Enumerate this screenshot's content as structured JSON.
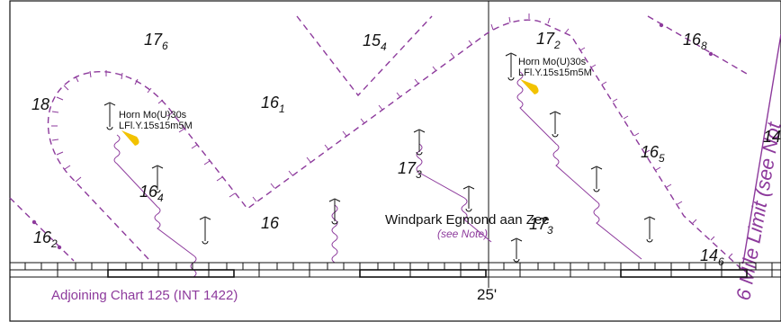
{
  "soundings": [
    {
      "main": "17",
      "sub": "6"
    },
    {
      "main": "15",
      "sub": "4"
    },
    {
      "main": "17",
      "sub": "2"
    },
    {
      "main": "16",
      "sub": "8"
    },
    {
      "main": "18",
      "sub": ""
    },
    {
      "main": "16",
      "sub": "1"
    },
    {
      "main": "17",
      "sub": "3"
    },
    {
      "main": "16",
      "sub": "5"
    },
    {
      "main": "14",
      "sub": ""
    },
    {
      "main": "16",
      "sub": "4"
    },
    {
      "main": "16",
      "sub": ""
    },
    {
      "main": "16",
      "sub": "2"
    },
    {
      "main": "17",
      "sub": "3"
    },
    {
      "main": "14",
      "sub": "6"
    }
  ],
  "lights": [
    {
      "fog_signal": "Horn Mo(U)30s",
      "characteristic": "LFl.Y.15s15m5M"
    },
    {
      "fog_signal": "Horn Mo(U)30s",
      "characteristic": "LFl.Y.15s15m5M"
    }
  ],
  "place_name": "Windpark Egmond aan Zee",
  "see_note": "(see Note)",
  "limit_label": "6 Mile Limit (see Not",
  "adjoining_chart": "Adjoining Chart 125 (INT 1422)",
  "meridian_label": "25'",
  "colors": {
    "magenta": "#8d3a9c",
    "light_flare": "#f2c200",
    "ink": "#111111"
  }
}
